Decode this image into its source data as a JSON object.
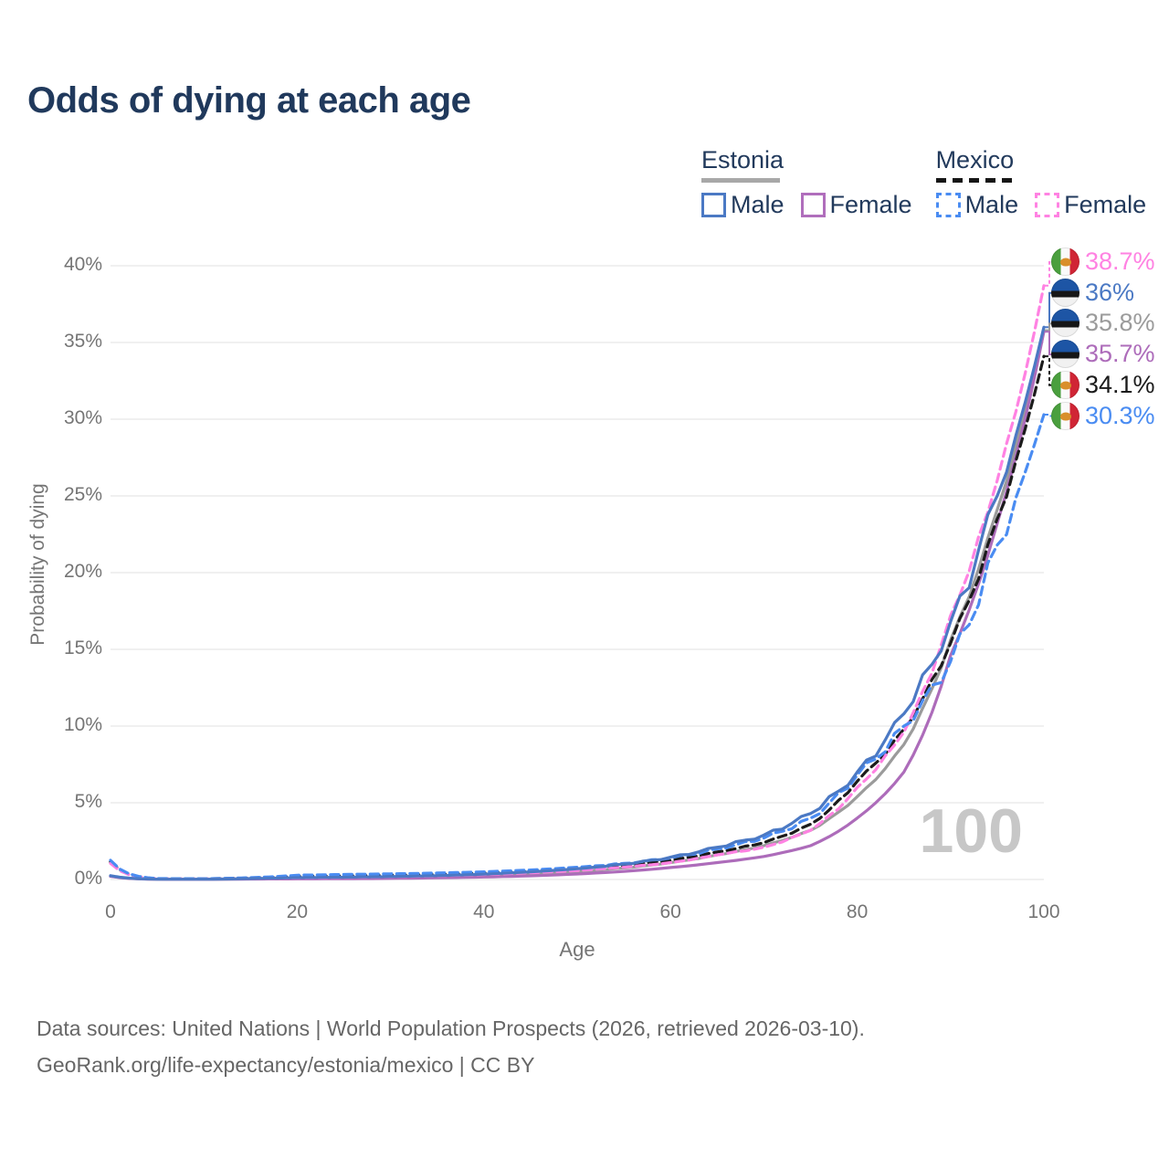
{
  "title": "Odds of dying at each age",
  "watermark": "100",
  "legend": {
    "groups": [
      {
        "country": "Estonia",
        "line_style": "solid",
        "underline_color": "#a8a8a8",
        "items": [
          {
            "label": "Male",
            "color": "#4b79c4",
            "dashed": false
          },
          {
            "label": "Female",
            "color": "#b06ebc",
            "dashed": false
          }
        ]
      },
      {
        "country": "Mexico",
        "line_style": "dashed",
        "underline_color": "#161616",
        "items": [
          {
            "label": "Male",
            "color": "#4a8cf2",
            "dashed": true
          },
          {
            "label": "Female",
            "color": "#ff82e2",
            "dashed": true
          }
        ]
      }
    ]
  },
  "footer": {
    "line1": "Data sources: United Nations | World Population Prospects (2026, retrieved 2026-03-10).",
    "line2": "GeoRank.org/life-expectancy/estonia/mexico | CC BY"
  },
  "chart_data": {
    "type": "line",
    "title": "Odds of dying at each age",
    "xlabel": "Age",
    "ylabel": "Probability of dying",
    "xlim": [
      0,
      100
    ],
    "ylim": [
      0,
      40
    ],
    "x_ticks": [
      0,
      20,
      40,
      60,
      80,
      100
    ],
    "y_ticks": [
      "0%",
      "5%",
      "10%",
      "15%",
      "20%",
      "25%",
      "30%",
      "35%",
      "40%"
    ],
    "grid": "horizontal",
    "legend_position": "top-right",
    "ages": [
      0,
      5,
      10,
      15,
      20,
      25,
      30,
      35,
      40,
      45,
      50,
      55,
      60,
      65,
      70,
      75,
      80,
      85,
      90,
      95,
      100
    ],
    "series": [
      {
        "name": "Estonia Male",
        "country": "Estonia",
        "sex": "Male",
        "flag": "estonia",
        "color": "#4b79c4",
        "line_style": "solid",
        "end_label": "36%",
        "values": [
          0.25,
          0.02,
          0.02,
          0.06,
          0.12,
          0.15,
          0.19,
          0.25,
          0.35,
          0.5,
          0.7,
          1.0,
          1.45,
          2.1,
          2.9,
          4.3,
          7.0,
          10.8,
          16.8,
          25.0,
          36.0
        ]
      },
      {
        "name": "Estonia Female",
        "country": "Estonia",
        "sex": "Female",
        "flag": "estonia",
        "color": "#ad6cba",
        "line_style": "solid",
        "end_label": "35.7%",
        "values": [
          0.2,
          0.015,
          0.012,
          0.03,
          0.04,
          0.05,
          0.07,
          0.11,
          0.16,
          0.24,
          0.36,
          0.53,
          0.78,
          1.1,
          1.5,
          2.2,
          4.0,
          7.0,
          14.6,
          23.2,
          35.7
        ]
      },
      {
        "name": "Estonia Both sexes",
        "country": "Estonia",
        "sex": "Both",
        "flag": "estonia",
        "color": "#9b9b9b",
        "line_style": "solid",
        "end_label": "35.8%",
        "values": [
          0.22,
          0.018,
          0.016,
          0.045,
          0.08,
          0.1,
          0.13,
          0.18,
          0.25,
          0.36,
          0.52,
          0.75,
          1.1,
          1.6,
          2.2,
          3.2,
          5.4,
          8.8,
          15.6,
          24.1,
          35.8
        ]
      },
      {
        "name": "Mexico Male",
        "country": "Mexico",
        "sex": "Male",
        "flag": "mexico",
        "color": "#4a8cf2",
        "line_style": "dashed",
        "end_label": "30.3%",
        "values": [
          1.25,
          0.06,
          0.05,
          0.12,
          0.28,
          0.33,
          0.37,
          0.42,
          0.5,
          0.62,
          0.8,
          1.05,
          1.4,
          2.0,
          2.7,
          4.0,
          6.8,
          10.0,
          14.2,
          21.8,
          30.3
        ]
      },
      {
        "name": "Mexico Female",
        "country": "Mexico",
        "sex": "Female",
        "flag": "mexico",
        "color": "#ff82e2",
        "line_style": "dashed",
        "end_label": "38.7%",
        "values": [
          1.05,
          0.05,
          0.04,
          0.07,
          0.11,
          0.14,
          0.18,
          0.24,
          0.33,
          0.44,
          0.58,
          0.8,
          1.1,
          1.6,
          2.1,
          3.2,
          6.0,
          9.6,
          17.2,
          26.0,
          38.7
        ]
      },
      {
        "name": "Mexico Both sexes",
        "country": "Mexico",
        "sex": "Both",
        "flag": "mexico",
        "color": "#1b1b1b",
        "line_style": "dashed",
        "end_label": "34.1%",
        "values": [
          1.15,
          0.055,
          0.045,
          0.095,
          0.2,
          0.24,
          0.28,
          0.33,
          0.42,
          0.53,
          0.69,
          0.93,
          1.25,
          1.8,
          2.4,
          3.6,
          6.4,
          9.8,
          15.4,
          23.5,
          34.1
        ]
      }
    ]
  }
}
